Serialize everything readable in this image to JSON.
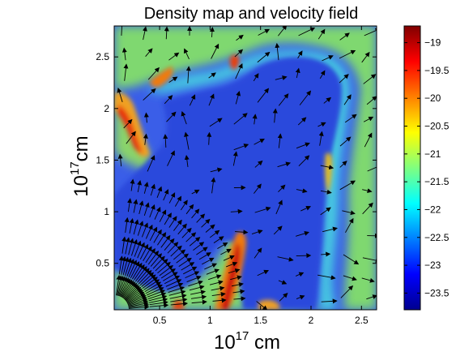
{
  "chart_data": {
    "type": "heatmap",
    "title": "Density map and velocity field",
    "xlabel": {
      "base": "10",
      "exp": "17",
      "unit": " cm"
    },
    "ylabel": {
      "base": "10",
      "exp": "17",
      "unit": "cm"
    },
    "xlim": [
      0.05,
      2.65
    ],
    "ylim": [
      0.05,
      2.8
    ],
    "xticks": [
      0.5,
      1,
      1.5,
      2,
      2.5
    ],
    "xtick_labels": [
      "0.5",
      "1",
      "1.5",
      "2",
      "2.5"
    ],
    "yticks": [
      0.5,
      1,
      1.5,
      2,
      2.5
    ],
    "ytick_labels": [
      "0.5",
      "1",
      "1.5",
      "2",
      "2.5"
    ],
    "colorbar": {
      "clim": [
        -23.8,
        -18.7
      ],
      "ticks": [
        -19,
        -19.5,
        -20,
        -20.5,
        -21,
        -21.5,
        -22,
        -22.5,
        -23,
        -23.5
      ],
      "tick_labels": [
        "−19",
        "−19.5",
        "−20",
        "−20.5",
        "−21",
        "−21.5",
        "−22",
        "−22.5",
        "−23",
        "−23.5"
      ],
      "colormap": "jet"
    },
    "background_value": -23.4,
    "features": [
      {
        "region": "shell",
        "value": -22.0
      },
      {
        "region": "shell-green",
        "value": -21.0
      },
      {
        "region": "dense-knot-upper-left",
        "value": -19.8
      },
      {
        "region": "dense-filament-lower",
        "value": -19.6
      },
      {
        "region": "dense-knot-top",
        "value": -19.8
      }
    ],
    "vector_field": {
      "type": "quiver",
      "color": "#000000",
      "source": [
        0.05,
        0.05
      ]
    }
  }
}
